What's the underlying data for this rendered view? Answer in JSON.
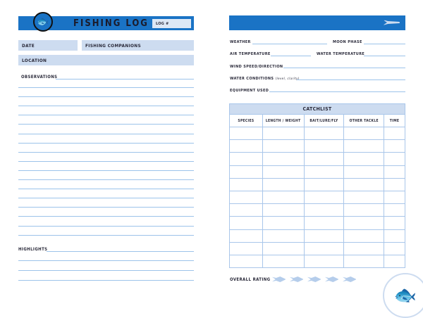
{
  "left": {
    "title": "FISHING LOG",
    "log_label": "LOG #",
    "date": "DATE",
    "companions": "FISHING COMPANIONS",
    "location": "LOCATION",
    "observations": "OBSERVATIONS",
    "highlights": "HIGHLIGHTS"
  },
  "right": {
    "fields": {
      "weather": "WEATHER",
      "moon": "MOON PHASE",
      "air": "AIR TEMPERATURE",
      "water_temp": "WATER TEMPERATURE",
      "wind": "WIND SPEED/DIRECTION",
      "water_cond": "WATER CONDITIONS",
      "water_cond_note": "(level, clarity)",
      "equipment": "EQUIPMENT USED"
    },
    "catchlist": {
      "title": "CATCHLIST",
      "columns": [
        "SPECIES",
        "LENGTH / WEIGHT",
        "BAIT/LURE/FLY",
        "OTHER TACKLE",
        "TIME"
      ],
      "row_count": 11
    },
    "rating": {
      "label": "OVERALL RATING",
      "max": 5
    }
  },
  "colors": {
    "accent": "#1a73c5",
    "field_bg": "#cddcf0",
    "line": "#9cc3ea"
  }
}
